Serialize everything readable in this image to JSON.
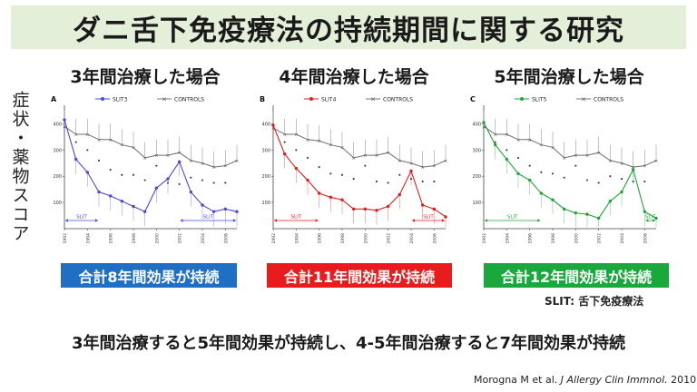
{
  "title": "ダニ舌下免疫療法の持続期間に関する研究",
  "y_axis_label": "症状・薬物スコア",
  "footnote": "SLIT: 舌下免疫療法",
  "conclusion": "3年間治療すると5年間効果が持続し、4-5年間治療すると7年間効果が持続",
  "citation": {
    "authors": "Morogna  M et al.",
    "journal": "J Allergy Clin Immnol.",
    "year": "2010."
  },
  "panels": [
    {
      "heading": "3年間治療した場合",
      "effect": "合計8年間効果が持続",
      "color": "#4a4ad6",
      "badge_color": "#1f6fc5"
    },
    {
      "heading": "4年間治療した場合",
      "effect": "合計11年間効果が持続",
      "color": "#e01e1e",
      "badge_color": "#e81c1c"
    },
    {
      "heading": "5年間治療した場合",
      "effect": "合計12年間効果が持続",
      "color": "#22a33a",
      "badge_color": "#18a83c"
    }
  ],
  "chart_data": [
    {
      "type": "line",
      "panel_letter": "A",
      "x": [
        1992,
        1993,
        1994,
        1995,
        1996,
        1997,
        1998,
        1999,
        2000,
        2001,
        2002,
        2003,
        2004,
        2005,
        2006,
        2007
      ],
      "ylim": [
        0,
        450
      ],
      "yticks": [
        100,
        200,
        300,
        400
      ],
      "xticks": [
        1992,
        1994,
        1996,
        1998,
        2000,
        2002,
        2004,
        2006
      ],
      "series": [
        {
          "name": "SLIT3",
          "values": [
            415,
            265,
            215,
            140,
            125,
            105,
            85,
            65,
            155,
            190,
            255,
            140,
            90,
            65,
            75,
            65
          ]
        },
        {
          "name": "CONTROLS",
          "values": [
            390,
            360,
            360,
            340,
            340,
            320,
            310,
            270,
            280,
            280,
            290,
            260,
            250,
            235,
            240,
            260
          ]
        }
      ],
      "dots": [
        330,
        300,
        260,
        225,
        205,
        205,
        185,
        240,
        175,
        170,
        195,
        185,
        175,
        175
      ],
      "annotations": [
        {
          "text": "SLIT",
          "from": 1992,
          "to": 1995
        },
        {
          "text": "SLIT",
          "from": 2002,
          "to": 2007
        }
      ]
    },
    {
      "type": "line",
      "panel_letter": "B",
      "x": [
        1992,
        1993,
        1994,
        1995,
        1996,
        1997,
        1998,
        1999,
        2000,
        2001,
        2002,
        2003,
        2004,
        2005,
        2006,
        2007
      ],
      "ylim": [
        0,
        450
      ],
      "yticks": [
        100,
        200,
        300,
        400
      ],
      "xticks": [
        1992,
        1994,
        1996,
        1998,
        2000,
        2002,
        2004,
        2006
      ],
      "series": [
        {
          "name": "SLIT4",
          "values": [
            395,
            285,
            230,
            185,
            135,
            120,
            110,
            75,
            75,
            70,
            85,
            130,
            220,
            90,
            75,
            45
          ]
        },
        {
          "name": "CONTROLS",
          "values": [
            385,
            360,
            360,
            340,
            335,
            320,
            310,
            270,
            280,
            280,
            290,
            260,
            250,
            235,
            240,
            260
          ]
        }
      ],
      "dots": [
        330,
        300,
        270,
        235,
        210,
        205,
        190,
        240,
        180,
        175,
        205,
        190,
        180,
        180
      ],
      "annotations": [
        {
          "text": "SLIT",
          "from": 1992,
          "to": 1996
        },
        {
          "text": "SLIT",
          "from": 2004,
          "to": 2007
        }
      ]
    },
    {
      "type": "line",
      "panel_letter": "C",
      "x": [
        1992,
        1993,
        1994,
        1995,
        1996,
        1997,
        1998,
        1999,
        2000,
        2001,
        2002,
        2003,
        2004,
        2005,
        2006,
        2007
      ],
      "ylim": [
        0,
        450
      ],
      "yticks": [
        100,
        200,
        300,
        400
      ],
      "xticks": [
        1992,
        1994,
        1996,
        1998,
        2000,
        2002,
        2004,
        2006
      ],
      "series": [
        {
          "name": "SLIT5",
          "values": [
            405,
            320,
            265,
            210,
            185,
            135,
            110,
            75,
            60,
            55,
            40,
            105,
            140,
            225,
            65,
            40
          ]
        },
        {
          "name": "CONTROLS",
          "values": [
            390,
            360,
            360,
            340,
            340,
            320,
            310,
            270,
            280,
            280,
            290,
            260,
            250,
            235,
            240,
            260
          ]
        }
      ],
      "dots": [
        330,
        300,
        270,
        240,
        215,
        210,
        195,
        240,
        185,
        175,
        200,
        190,
        180,
        180
      ],
      "annotations": [
        {
          "text": "SLIT",
          "from": 1992,
          "to": 1997
        },
        {
          "text": "SLIT",
          "from": 2006,
          "to": 2007
        }
      ]
    }
  ]
}
